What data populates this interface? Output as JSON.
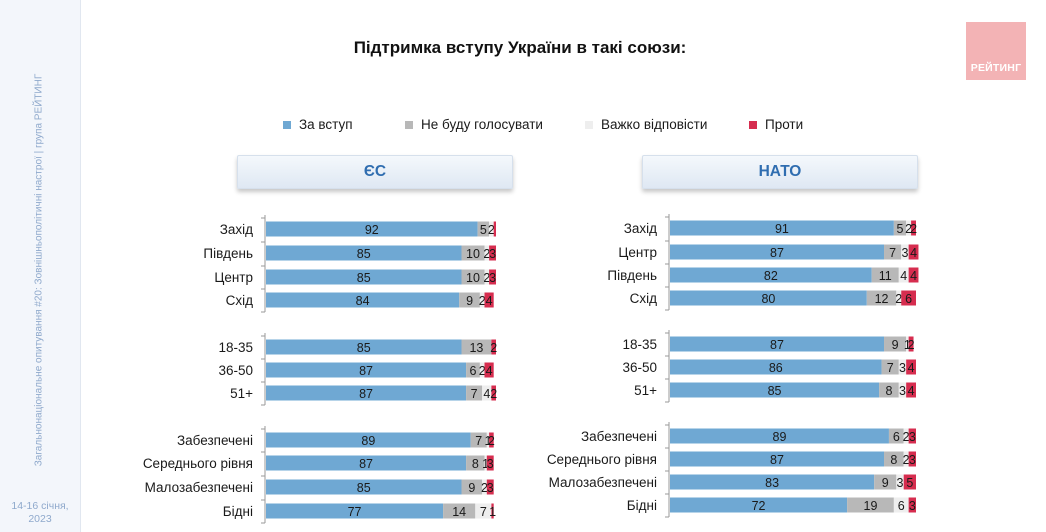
{
  "title": "Підтримка вступу України в такі союзи:",
  "sidebar": {
    "vertical_text": "Загальнонаціональне опитування #20: Зовнішньополітичні настрої | група РЕЙТИНГ",
    "date_line1": "14-16 січня,",
    "date_line2": "2023"
  },
  "logo": {
    "text": "РЕЙТИНГ"
  },
  "legend": [
    {
      "label": "За вступ",
      "color": "#6fa8d3"
    },
    {
      "label": "Не буду голосувати",
      "color": "#b8b8b8"
    },
    {
      "label": "Важко відповісти",
      "color": "#eeeeee"
    },
    {
      "label": "Проти",
      "color": "#d62d4f"
    }
  ],
  "chart_data": [
    {
      "type": "bar",
      "stacked": true,
      "orientation": "horizontal",
      "title": "ЄС",
      "categories": [
        "Захід",
        "Південь",
        "Центр",
        "Схід",
        "18-35",
        "36-50",
        "51+",
        "Забезпечені",
        "Середнього рівня",
        "Малозабезпечені",
        "Бідні"
      ],
      "groups": [
        [
          0,
          1,
          2,
          3
        ],
        [
          4,
          5,
          6
        ],
        [
          7,
          8,
          9,
          10
        ]
      ],
      "series": [
        {
          "name": "За вступ",
          "color": "#6fa8d3",
          "values": [
            92,
            85,
            85,
            84,
            85,
            87,
            87,
            89,
            87,
            85,
            77
          ]
        },
        {
          "name": "Не буду голосувати",
          "color": "#b8b8b8",
          "values": [
            5,
            10,
            10,
            9,
            13,
            6,
            7,
            7,
            8,
            9,
            14
          ]
        },
        {
          "name": "Важко відповісти",
          "color": "#eeeeee",
          "values": [
            2,
            2,
            2,
            2,
            0,
            2,
            4,
            1,
            1,
            2,
            7
          ]
        },
        {
          "name": "Проти",
          "color": "#d62d4f",
          "values": [
            1,
            3,
            3,
            4,
            2,
            4,
            2,
            2,
            3,
            3,
            1
          ]
        }
      ],
      "labels": [
        [
          "92",
          "5",
          "2",
          ""
        ],
        [
          "85",
          "10",
          "2",
          "3"
        ],
        [
          "85",
          "10",
          "2",
          "3"
        ],
        [
          "84",
          "9",
          "2",
          "4"
        ],
        [
          "85",
          "13",
          "",
          "2"
        ],
        [
          "87",
          "6",
          "2",
          "4"
        ],
        [
          "87",
          "7",
          "4",
          "2"
        ],
        [
          "89",
          "7",
          "1",
          "2"
        ],
        [
          "87",
          "8",
          "1",
          "3"
        ],
        [
          "85",
          "9",
          "2",
          "3"
        ],
        [
          "77",
          "14",
          "7",
          "1"
        ]
      ]
    },
    {
      "type": "bar",
      "stacked": true,
      "orientation": "horizontal",
      "title": "НАТО",
      "categories": [
        "Захід",
        "Центр",
        "Південь",
        "Схід",
        "18-35",
        "36-50",
        "51+",
        "Забезпечені",
        "Середнього рівня",
        "Малозабезпечені",
        "Бідні"
      ],
      "groups": [
        [
          0,
          1,
          2,
          3
        ],
        [
          4,
          5,
          6
        ],
        [
          7,
          8,
          9,
          10
        ]
      ],
      "series": [
        {
          "name": "За вступ",
          "color": "#6fa8d3",
          "values": [
            91,
            87,
            82,
            80,
            87,
            86,
            85,
            89,
            87,
            83,
            72
          ]
        },
        {
          "name": "Не буду голосувати",
          "color": "#b8b8b8",
          "values": [
            5,
            7,
            11,
            12,
            9,
            7,
            8,
            6,
            8,
            9,
            19
          ]
        },
        {
          "name": "Важко відповісти",
          "color": "#eeeeee",
          "values": [
            2,
            3,
            4,
            2,
            1,
            3,
            3,
            2,
            2,
            3,
            6
          ]
        },
        {
          "name": "Проти",
          "color": "#d62d4f",
          "values": [
            2,
            4,
            4,
            6,
            2,
            4,
            4,
            3,
            3,
            5,
            3
          ]
        }
      ],
      "labels": [
        [
          "91",
          "5",
          "2",
          "2"
        ],
        [
          "87",
          "7",
          "3",
          "4"
        ],
        [
          "82",
          "11",
          "4",
          "4"
        ],
        [
          "80",
          "12",
          "2",
          "6"
        ],
        [
          "87",
          "9",
          "1",
          "2"
        ],
        [
          "86",
          "7",
          "3",
          "4"
        ],
        [
          "85",
          "8",
          "3",
          "4"
        ],
        [
          "89",
          "6",
          "2",
          "3"
        ],
        [
          "87",
          "8",
          "2",
          "3"
        ],
        [
          "83",
          "9",
          "3",
          "5"
        ],
        [
          "72",
          "19",
          "6",
          "3"
        ]
      ]
    }
  ]
}
